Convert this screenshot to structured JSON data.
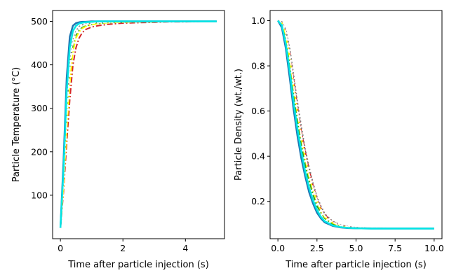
{
  "chart_data": [
    {
      "type": "line",
      "xlabel": "Time after particle injection (s)",
      "ylabel": "Particle Temperature ($^\\circ$C)",
      "ylabel_display": "Particle Temperature (°C)",
      "xlim": [
        -0.25,
        5.25
      ],
      "ylim": [
        0,
        525
      ],
      "xticks": [
        0,
        2,
        4
      ],
      "yticks": [
        100,
        200,
        300,
        400,
        500
      ],
      "grid": false,
      "legend": "none",
      "series": [
        {
          "color": "#d62728",
          "dash": "8,3,2,3",
          "x": [
            0,
            0.1,
            0.2,
            0.3,
            0.4,
            0.5,
            0.6,
            0.7,
            0.8,
            1.0,
            1.2,
            1.5,
            2.0,
            2.5,
            3.0,
            3.5,
            4.0,
            4.5,
            5.0
          ],
          "y": [
            25,
            110,
            220,
            320,
            400,
            440,
            462,
            474,
            481,
            487,
            490,
            493,
            496,
            497,
            498,
            499,
            499,
            500,
            500
          ]
        },
        {
          "color": "#2ca02c",
          "dash": "8,3,2,3",
          "x": [
            0,
            0.1,
            0.2,
            0.3,
            0.4,
            0.5,
            0.6,
            0.7,
            0.8,
            1.0,
            1.2,
            1.5,
            2.0,
            2.5,
            3.0,
            3.5,
            4.0,
            4.5,
            5.0
          ],
          "y": [
            25,
            130,
            260,
            370,
            440,
            468,
            480,
            486,
            489,
            493,
            495,
            497,
            498,
            499,
            499,
            500,
            500,
            500,
            500
          ]
        },
        {
          "color": "#ffff00",
          "dash": "8,3,2,3",
          "x": [
            0,
            0.1,
            0.2,
            0.3,
            0.4,
            0.5,
            0.6,
            0.7,
            0.8,
            1.0,
            1.2,
            1.5,
            2.0,
            2.5,
            3.0,
            3.5,
            4.0,
            4.5,
            5.0
          ],
          "y": [
            25,
            120,
            250,
            360,
            430,
            462,
            476,
            484,
            488,
            492,
            495,
            497,
            498,
            499,
            499,
            500,
            500,
            500,
            500
          ]
        },
        {
          "color": "#7f7f7f",
          "dash": "2,3",
          "x": [
            0,
            0.1,
            0.2,
            0.3,
            0.4,
            0.5,
            0.6,
            0.7,
            0.8,
            1.0,
            1.2,
            1.5,
            2.0,
            2.5,
            3.0,
            3.5,
            4.0,
            4.5,
            5.0
          ],
          "y": [
            25,
            140,
            290,
            400,
            456,
            478,
            488,
            492,
            494,
            496,
            497,
            498,
            499,
            499,
            500,
            500,
            500,
            500,
            500
          ]
        },
        {
          "color": "#ffffff",
          "dash": "6,3",
          "x": [
            0,
            0.1,
            0.2,
            0.3,
            0.4,
            0.5,
            0.6,
            0.7,
            0.8,
            1.0,
            1.2,
            1.5,
            2.0,
            2.5,
            3.0,
            3.5,
            4.0,
            4.5,
            5.0
          ],
          "y": [
            25,
            135,
            280,
            390,
            450,
            474,
            485,
            490,
            493,
            495,
            497,
            498,
            499,
            499,
            500,
            500,
            500,
            500,
            500
          ]
        },
        {
          "color": "#1f77b4",
          "dash": "",
          "x": [
            0,
            0.1,
            0.2,
            0.3,
            0.4,
            0.5,
            0.6,
            0.7,
            0.8,
            1.0,
            1.2,
            1.5,
            2.0,
            2.5,
            3.0,
            3.5,
            4.0,
            4.5,
            5.0
          ],
          "y": [
            25,
            180,
            370,
            465,
            490,
            496,
            498,
            499,
            499,
            500,
            500,
            500,
            500,
            500,
            500,
            500,
            500,
            500,
            500
          ]
        },
        {
          "color": "#00e5e5",
          "dash": "",
          "x": [
            0,
            0.1,
            0.2,
            0.3,
            0.4,
            0.5,
            0.6,
            0.7,
            0.8,
            1.0,
            1.2,
            1.5,
            2.0,
            2.5,
            3.0,
            3.5,
            4.0,
            4.5,
            5.0
          ],
          "y": [
            25,
            160,
            340,
            440,
            478,
            490,
            495,
            497,
            498,
            499,
            500,
            500,
            500,
            500,
            500,
            500,
            500,
            500,
            500
          ]
        }
      ]
    },
    {
      "type": "line",
      "xlabel": "Time after particle injection (s)",
      "ylabel": "Particle Density (wt./wt.)",
      "xlim": [
        -0.5,
        10.5
      ],
      "ylim": [
        0.035,
        1.045
      ],
      "xticks": [
        0.0,
        2.5,
        5.0,
        7.5,
        10.0
      ],
      "xtick_labels": [
        "0.0",
        "2.5",
        "5.0",
        "7.5",
        "10.0"
      ],
      "yticks": [
        0.2,
        0.4,
        0.6,
        0.8,
        1.0
      ],
      "ytick_labels": [
        "0.2",
        "0.4",
        "0.6",
        "0.8",
        "1.0"
      ],
      "grid": false,
      "legend": "none",
      "series": [
        {
          "color": "#d62728",
          "dash": "8,3,2,3",
          "x": [
            0,
            0.25,
            0.5,
            0.75,
            1.0,
            1.25,
            1.5,
            1.75,
            2.0,
            2.25,
            2.5,
            2.75,
            3.0,
            3.5,
            4.0,
            4.5,
            5.0,
            6.0,
            7.0,
            8.0,
            9.0,
            10.0
          ],
          "y": [
            1.0,
            0.99,
            0.95,
            0.86,
            0.74,
            0.62,
            0.51,
            0.42,
            0.34,
            0.27,
            0.21,
            0.17,
            0.14,
            0.11,
            0.095,
            0.087,
            0.083,
            0.081,
            0.08,
            0.08,
            0.08,
            0.08
          ]
        },
        {
          "color": "#2ca02c",
          "dash": "8,3,2,3",
          "x": [
            0,
            0.25,
            0.5,
            0.75,
            1.0,
            1.25,
            1.5,
            1.75,
            2.0,
            2.25,
            2.5,
            2.75,
            3.0,
            3.5,
            4.0,
            4.5,
            5.0,
            6.0,
            7.0,
            8.0,
            9.0,
            10.0
          ],
          "y": [
            1.0,
            0.985,
            0.92,
            0.81,
            0.68,
            0.56,
            0.45,
            0.36,
            0.29,
            0.23,
            0.18,
            0.15,
            0.125,
            0.1,
            0.09,
            0.085,
            0.082,
            0.08,
            0.08,
            0.08,
            0.08,
            0.08
          ]
        },
        {
          "color": "#ffff00",
          "dash": "8,3,2,3",
          "x": [
            0,
            0.25,
            0.5,
            0.75,
            1.0,
            1.25,
            1.5,
            1.75,
            2.0,
            2.25,
            2.5,
            2.75,
            3.0,
            3.5,
            4.0,
            4.5,
            5.0,
            6.0,
            7.0,
            8.0,
            9.0,
            10.0
          ],
          "y": [
            1.0,
            0.99,
            0.94,
            0.84,
            0.71,
            0.59,
            0.48,
            0.39,
            0.31,
            0.25,
            0.2,
            0.16,
            0.13,
            0.105,
            0.092,
            0.086,
            0.082,
            0.08,
            0.08,
            0.08,
            0.08,
            0.08
          ]
        },
        {
          "color": "#7f7f7f",
          "dash": "2,3",
          "x": [
            0,
            0.25,
            0.5,
            0.75,
            1.0,
            1.25,
            1.5,
            1.75,
            2.0,
            2.25,
            2.5,
            2.75,
            3.0,
            3.5,
            4.0,
            4.5,
            5.0,
            6.0,
            7.0,
            8.0,
            9.0,
            10.0
          ],
          "y": [
            1.0,
            0.995,
            0.96,
            0.88,
            0.76,
            0.64,
            0.53,
            0.43,
            0.35,
            0.28,
            0.22,
            0.18,
            0.145,
            0.112,
            0.096,
            0.088,
            0.084,
            0.081,
            0.08,
            0.08,
            0.08,
            0.08
          ]
        },
        {
          "color": "#ffffff",
          "dash": "6,3",
          "x": [
            0,
            0.25,
            0.5,
            0.75,
            1.0,
            1.25,
            1.5,
            1.75,
            2.0,
            2.25,
            2.5,
            2.75,
            3.0,
            3.5,
            4.0,
            4.5,
            5.0,
            6.0,
            7.0,
            8.0,
            9.0,
            10.0
          ],
          "y": [
            1.0,
            0.99,
            0.95,
            0.85,
            0.72,
            0.6,
            0.49,
            0.4,
            0.32,
            0.26,
            0.205,
            0.165,
            0.135,
            0.108,
            0.094,
            0.087,
            0.083,
            0.081,
            0.08,
            0.08,
            0.08,
            0.08
          ]
        },
        {
          "color": "#1f77b4",
          "dash": "",
          "x": [
            0,
            0.25,
            0.5,
            0.75,
            1.0,
            1.25,
            1.5,
            1.75,
            2.0,
            2.25,
            2.5,
            2.75,
            3.0,
            3.5,
            4.0,
            4.5,
            5.0,
            6.0,
            7.0,
            8.0,
            9.0,
            10.0
          ],
          "y": [
            1.0,
            0.97,
            0.88,
            0.75,
            0.61,
            0.49,
            0.39,
            0.31,
            0.24,
            0.19,
            0.15,
            0.125,
            0.107,
            0.092,
            0.085,
            0.082,
            0.081,
            0.08,
            0.08,
            0.08,
            0.08,
            0.08
          ]
        },
        {
          "color": "#00e5e5",
          "dash": "",
          "x": [
            0,
            0.25,
            0.5,
            0.75,
            1.0,
            1.25,
            1.5,
            1.75,
            2.0,
            2.25,
            2.5,
            2.75,
            3.0,
            3.5,
            4.0,
            4.5,
            5.0,
            6.0,
            7.0,
            8.0,
            9.0,
            10.0
          ],
          "y": [
            1.0,
            0.98,
            0.9,
            0.78,
            0.64,
            0.52,
            0.42,
            0.33,
            0.26,
            0.205,
            0.162,
            0.132,
            0.112,
            0.094,
            0.086,
            0.083,
            0.081,
            0.08,
            0.08,
            0.08,
            0.08,
            0.08
          ]
        }
      ]
    }
  ]
}
